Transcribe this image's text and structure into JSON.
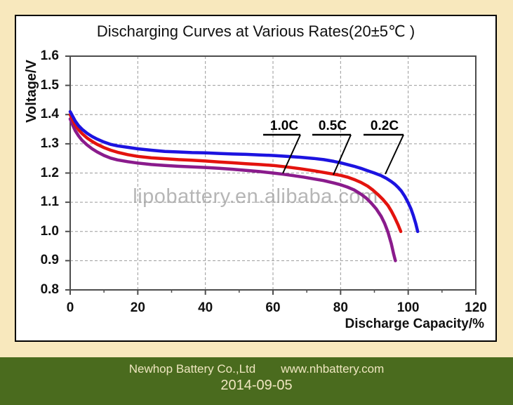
{
  "title": "Discharging Curves at Various Rates(20±5℃ )",
  "watermark": "lipobattery.en.alibaba.com",
  "footer": {
    "company": "Newhop Battery Co.,Ltd",
    "website": "www.nhbattery.com",
    "date": "2014-09-05",
    "bg_color": "#4a6b1e",
    "text_color": "#efe6c0"
  },
  "colors": {
    "page_bg": "#f8e8bd",
    "panel_bg": "#ffffff",
    "panel_border": "#000000",
    "axis": "#4d4d4d",
    "grid": "#9a9a9a",
    "watermark": "#b6b6b6",
    "leader_line": "#000000"
  },
  "chart_data": {
    "type": "line",
    "title": "Discharging Curves at Various Rates(20±5℃ )",
    "xlabel": "Discharge Capacity/%",
    "ylabel": "Voltage/V",
    "xlim": [
      0,
      120
    ],
    "ylim": [
      0.8,
      1.6
    ],
    "xticks": [
      0,
      20,
      40,
      60,
      80,
      100,
      120
    ],
    "yticks": [
      "1.6",
      "1.5",
      "1.4",
      "1.3",
      "1.2",
      "1.1",
      "1.0",
      "0.9",
      "0.8"
    ],
    "grid": true,
    "legend_position": "inside-top-right-with-leader-lines",
    "legend": [
      {
        "label": "1.0C",
        "color": "#8a1b8c"
      },
      {
        "label": "0.5C",
        "color": "#e3130e"
      },
      {
        "label": "0.2C",
        "color": "#1c13e0"
      }
    ],
    "series": [
      {
        "name": "1.0C",
        "color": "#8a1b8c",
        "points": [
          [
            0,
            1.385
          ],
          [
            0.7,
            1.365
          ],
          [
            1.5,
            1.345
          ],
          [
            2.5,
            1.327
          ],
          [
            3.5,
            1.312
          ],
          [
            5,
            1.296
          ],
          [
            6.5,
            1.283
          ],
          [
            8,
            1.272
          ],
          [
            10,
            1.26
          ],
          [
            12,
            1.251
          ],
          [
            14,
            1.245
          ],
          [
            17,
            1.239
          ],
          [
            20,
            1.234
          ],
          [
            24,
            1.229
          ],
          [
            28,
            1.226
          ],
          [
            32,
            1.223
          ],
          [
            36,
            1.221
          ],
          [
            40,
            1.219
          ],
          [
            44,
            1.216
          ],
          [
            48,
            1.213
          ],
          [
            52,
            1.209
          ],
          [
            56,
            1.205
          ],
          [
            60,
            1.2
          ],
          [
            63,
            1.196
          ],
          [
            66,
            1.191
          ],
          [
            69,
            1.186
          ],
          [
            72,
            1.18
          ],
          [
            75,
            1.174
          ],
          [
            78,
            1.166
          ],
          [
            80,
            1.16
          ],
          [
            82,
            1.152
          ],
          [
            84,
            1.142
          ],
          [
            86,
            1.128
          ],
          [
            87.5,
            1.115
          ],
          [
            89,
            1.098
          ],
          [
            90.5,
            1.078
          ],
          [
            92,
            1.052
          ],
          [
            93,
            1.028
          ],
          [
            94,
            0.998
          ],
          [
            95,
            0.958
          ],
          [
            95.7,
            0.922
          ],
          [
            96.2,
            0.9
          ]
        ]
      },
      {
        "name": "0.5C",
        "color": "#e3130e",
        "points": [
          [
            0,
            1.4
          ],
          [
            0.7,
            1.383
          ],
          [
            1.5,
            1.365
          ],
          [
            2.5,
            1.348
          ],
          [
            3.5,
            1.335
          ],
          [
            5,
            1.32
          ],
          [
            6.5,
            1.308
          ],
          [
            8,
            1.298
          ],
          [
            10,
            1.287
          ],
          [
            12,
            1.278
          ],
          [
            14,
            1.271
          ],
          [
            17,
            1.263
          ],
          [
            20,
            1.257
          ],
          [
            24,
            1.252
          ],
          [
            28,
            1.249
          ],
          [
            32,
            1.246
          ],
          [
            36,
            1.244
          ],
          [
            40,
            1.241
          ],
          [
            44,
            1.238
          ],
          [
            48,
            1.235
          ],
          [
            52,
            1.232
          ],
          [
            56,
            1.229
          ],
          [
            60,
            1.226
          ],
          [
            64,
            1.221
          ],
          [
            68,
            1.215
          ],
          [
            72,
            1.208
          ],
          [
            75,
            1.202
          ],
          [
            78,
            1.196
          ],
          [
            80,
            1.192
          ],
          [
            82,
            1.186
          ],
          [
            84,
            1.178
          ],
          [
            86,
            1.168
          ],
          [
            88,
            1.155
          ],
          [
            89.5,
            1.142
          ],
          [
            91,
            1.127
          ],
          [
            92.5,
            1.11
          ],
          [
            94,
            1.089
          ],
          [
            95,
            1.07
          ],
          [
            96,
            1.048
          ],
          [
            97,
            1.023
          ],
          [
            97.8,
            1.0
          ]
        ]
      },
      {
        "name": "0.2C",
        "color": "#1c13e0",
        "points": [
          [
            0,
            1.41
          ],
          [
            0.7,
            1.395
          ],
          [
            1.5,
            1.378
          ],
          [
            2.5,
            1.362
          ],
          [
            3.5,
            1.35
          ],
          [
            5,
            1.336
          ],
          [
            6.5,
            1.325
          ],
          [
            8,
            1.316
          ],
          [
            10,
            1.306
          ],
          [
            12,
            1.298
          ],
          [
            14,
            1.293
          ],
          [
            17,
            1.288
          ],
          [
            20,
            1.283
          ],
          [
            24,
            1.278
          ],
          [
            28,
            1.274
          ],
          [
            32,
            1.272
          ],
          [
            36,
            1.27
          ],
          [
            40,
            1.269
          ],
          [
            44,
            1.267
          ],
          [
            48,
            1.265
          ],
          [
            52,
            1.264
          ],
          [
            56,
            1.262
          ],
          [
            60,
            1.26
          ],
          [
            64,
            1.257
          ],
          [
            68,
            1.254
          ],
          [
            72,
            1.25
          ],
          [
            75,
            1.246
          ],
          [
            78,
            1.24
          ],
          [
            80,
            1.235
          ],
          [
            82,
            1.229
          ],
          [
            84,
            1.223
          ],
          [
            86,
            1.216
          ],
          [
            88,
            1.208
          ],
          [
            90,
            1.2
          ],
          [
            92,
            1.191
          ],
          [
            93.5,
            1.182
          ],
          [
            95,
            1.171
          ],
          [
            96,
            1.162
          ],
          [
            97,
            1.151
          ],
          [
            98,
            1.138
          ],
          [
            99,
            1.12
          ],
          [
            100,
            1.098
          ],
          [
            100.8,
            1.078
          ],
          [
            101.5,
            1.055
          ],
          [
            102.2,
            1.028
          ],
          [
            102.8,
            1.0
          ]
        ]
      }
    ]
  }
}
